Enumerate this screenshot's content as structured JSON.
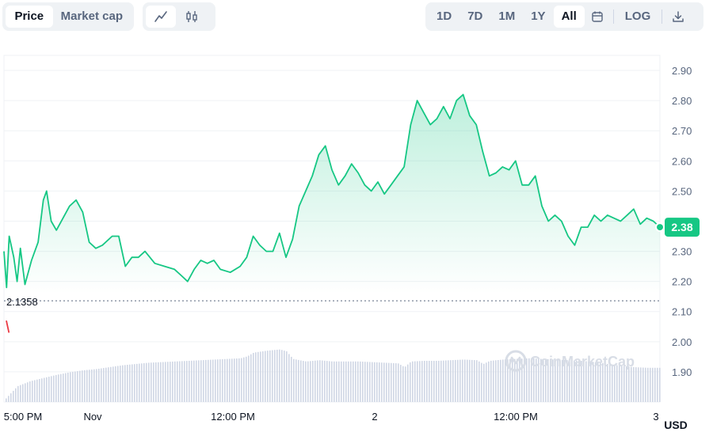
{
  "toolbar": {
    "metric_tabs": [
      {
        "label": "Price",
        "active": true
      },
      {
        "label": "Market cap",
        "active": false
      }
    ],
    "chart_type_icons": [
      "line-chart-icon",
      "candlestick-icon"
    ],
    "ranges": [
      {
        "label": "1D",
        "active": false
      },
      {
        "label": "7D",
        "active": false
      },
      {
        "label": "1M",
        "active": false
      },
      {
        "label": "1Y",
        "active": false
      },
      {
        "label": "All",
        "active": true
      }
    ],
    "calendar_icon": "calendar-icon",
    "log_label": "LOG",
    "download_icon": "download-icon"
  },
  "watermark": "CoinMarketCap",
  "colors": {
    "line": "#16c784",
    "down": "#ea3943",
    "volume": "#cfd6e4",
    "grid": "#eff2f5",
    "badge": "#16c784"
  },
  "chart_data": {
    "type": "line",
    "currency": "USD",
    "ylim": [
      1.8,
      2.95
    ],
    "yticks": [
      "2.90",
      "2.80",
      "2.70",
      "2.60",
      "2.50",
      "2.40",
      "2.30",
      "2.20",
      "2.10",
      "2.00",
      "1.90"
    ],
    "xticks": [
      "5:00 PM",
      "Nov",
      "12:00 PM",
      "2",
      "12:00 PM",
      "3"
    ],
    "current_price": "2.38",
    "reference_price": "2.1358",
    "grid": true,
    "price_series": [
      [
        0,
        2.3
      ],
      [
        0.4,
        2.18
      ],
      [
        0.8,
        2.35
      ],
      [
        1.5,
        2.28
      ],
      [
        2,
        2.2
      ],
      [
        2.5,
        2.31
      ],
      [
        3.2,
        2.19
      ],
      [
        4.2,
        2.27
      ],
      [
        5.2,
        2.33
      ],
      [
        6,
        2.47
      ],
      [
        6.5,
        2.5
      ],
      [
        7.2,
        2.4
      ],
      [
        8,
        2.37
      ],
      [
        9,
        2.41
      ],
      [
        10,
        2.45
      ],
      [
        11,
        2.47
      ],
      [
        12,
        2.43
      ],
      [
        13,
        2.33
      ],
      [
        14,
        2.31
      ],
      [
        15,
        2.32
      ],
      [
        16.5,
        2.35
      ],
      [
        17.5,
        2.35
      ],
      [
        18.5,
        2.25
      ],
      [
        19.5,
        2.28
      ],
      [
        20.5,
        2.28
      ],
      [
        21.5,
        2.3
      ],
      [
        23,
        2.26
      ],
      [
        24.5,
        2.25
      ],
      [
        26,
        2.24
      ],
      [
        27,
        2.22
      ],
      [
        28,
        2.2
      ],
      [
        29,
        2.24
      ],
      [
        30,
        2.27
      ],
      [
        31,
        2.26
      ],
      [
        32,
        2.27
      ],
      [
        33,
        2.24
      ],
      [
        34.5,
        2.23
      ],
      [
        36,
        2.25
      ],
      [
        37,
        2.28
      ],
      [
        38,
        2.35
      ],
      [
        39,
        2.32
      ],
      [
        40,
        2.3
      ],
      [
        41,
        2.3
      ],
      [
        42,
        2.36
      ],
      [
        43,
        2.28
      ],
      [
        44,
        2.34
      ],
      [
        45,
        2.45
      ],
      [
        46,
        2.5
      ],
      [
        47,
        2.55
      ],
      [
        48,
        2.62
      ],
      [
        49,
        2.65
      ],
      [
        50,
        2.57
      ],
      [
        51,
        2.52
      ],
      [
        52,
        2.55
      ],
      [
        53,
        2.59
      ],
      [
        54,
        2.56
      ],
      [
        55,
        2.52
      ],
      [
        56,
        2.5
      ],
      [
        57,
        2.53
      ],
      [
        58,
        2.49
      ],
      [
        59,
        2.52
      ],
      [
        60,
        2.55
      ],
      [
        61,
        2.58
      ],
      [
        62,
        2.72
      ],
      [
        63,
        2.8
      ],
      [
        64,
        2.76
      ],
      [
        65,
        2.72
      ],
      [
        66,
        2.74
      ],
      [
        67,
        2.78
      ],
      [
        68,
        2.74
      ],
      [
        69,
        2.8
      ],
      [
        70,
        2.82
      ],
      [
        71,
        2.75
      ],
      [
        72,
        2.72
      ],
      [
        73,
        2.63
      ],
      [
        74,
        2.55
      ],
      [
        75,
        2.56
      ],
      [
        76,
        2.58
      ],
      [
        77,
        2.57
      ],
      [
        78,
        2.6
      ],
      [
        79,
        2.52
      ],
      [
        80,
        2.52
      ],
      [
        81,
        2.55
      ],
      [
        82,
        2.45
      ],
      [
        83,
        2.4
      ],
      [
        84,
        2.42
      ],
      [
        85,
        2.4
      ],
      [
        86,
        2.35
      ],
      [
        87,
        2.32
      ],
      [
        88,
        2.38
      ],
      [
        89,
        2.38
      ],
      [
        90,
        2.42
      ],
      [
        91,
        2.4
      ],
      [
        92,
        2.42
      ],
      [
        93,
        2.41
      ],
      [
        94,
        2.4
      ],
      [
        95,
        2.42
      ],
      [
        96,
        2.44
      ],
      [
        97,
        2.39
      ],
      [
        98,
        2.41
      ],
      [
        99,
        2.4
      ],
      [
        100,
        2.38
      ]
    ],
    "volume_series": [
      [
        0,
        0.03
      ],
      [
        2,
        0.25
      ],
      [
        4,
        0.33
      ],
      [
        6,
        0.38
      ],
      [
        8,
        0.43
      ],
      [
        10,
        0.47
      ],
      [
        12,
        0.5
      ],
      [
        14,
        0.52
      ],
      [
        16,
        0.55
      ],
      [
        18,
        0.58
      ],
      [
        20,
        0.6
      ],
      [
        22,
        0.62
      ],
      [
        24,
        0.63
      ],
      [
        26,
        0.64
      ],
      [
        28,
        0.65
      ],
      [
        30,
        0.66
      ],
      [
        32,
        0.67
      ],
      [
        34,
        0.68
      ],
      [
        36,
        0.69
      ],
      [
        37,
        0.72
      ],
      [
        38,
        0.78
      ],
      [
        40,
        0.81
      ],
      [
        42,
        0.83
      ],
      [
        43,
        0.8
      ],
      [
        44,
        0.68
      ],
      [
        46,
        0.64
      ],
      [
        48,
        0.66
      ],
      [
        50,
        0.64
      ],
      [
        52,
        0.64
      ],
      [
        54,
        0.64
      ],
      [
        56,
        0.63
      ],
      [
        58,
        0.62
      ],
      [
        60,
        0.61
      ],
      [
        61,
        0.55
      ],
      [
        62,
        0.64
      ],
      [
        64,
        0.65
      ],
      [
        66,
        0.65
      ],
      [
        68,
        0.66
      ],
      [
        70,
        0.67
      ],
      [
        72,
        0.66
      ],
      [
        73,
        0.6
      ],
      [
        74,
        0.65
      ],
      [
        76,
        0.67
      ],
      [
        78,
        0.68
      ],
      [
        80,
        0.69
      ],
      [
        82,
        0.68
      ],
      [
        84,
        0.67
      ],
      [
        86,
        0.66
      ],
      [
        88,
        0.65
      ],
      [
        90,
        0.63
      ],
      [
        92,
        0.6
      ],
      [
        94,
        0.57
      ],
      [
        96,
        0.55
      ],
      [
        98,
        0.54
      ],
      [
        100,
        0.54
      ]
    ],
    "down_segment": [
      [
        0,
        2.07
      ],
      [
        0.4,
        2.03
      ]
    ]
  }
}
